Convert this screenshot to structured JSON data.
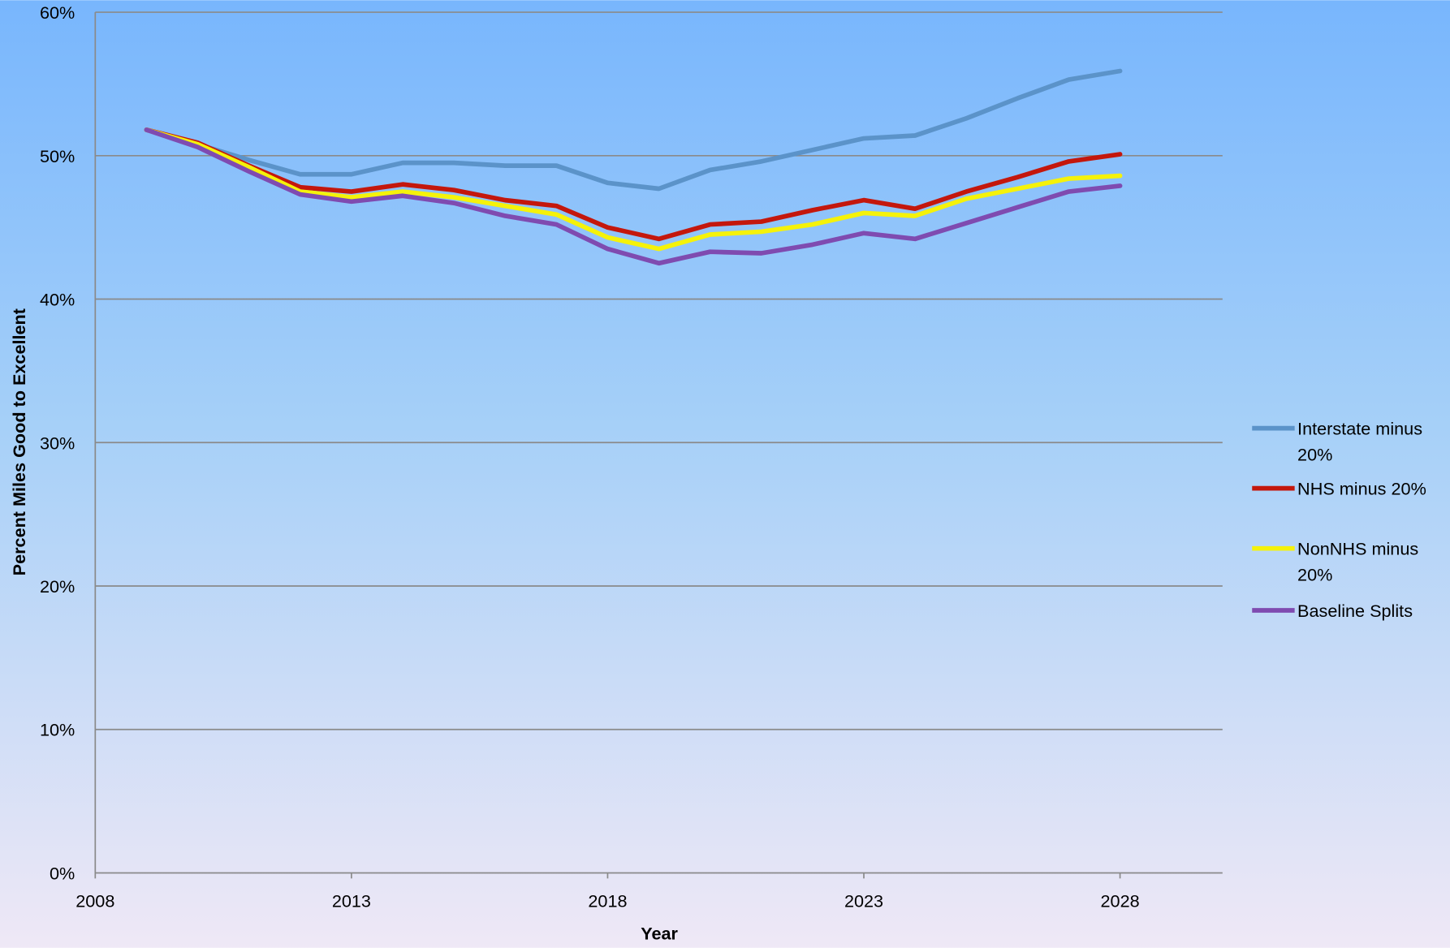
{
  "chart_data": {
    "type": "line",
    "x_label": "Year",
    "y_label": "Percent Miles Good to Excellent",
    "x": [
      2009,
      2010,
      2011,
      2012,
      2013,
      2014,
      2015,
      2016,
      2017,
      2018,
      2019,
      2020,
      2021,
      2022,
      2023,
      2024,
      2025,
      2026,
      2027,
      2028
    ],
    "series": [
      {
        "name": "Interstate minus 20%",
        "color": "#5b93c9",
        "values": [
          51.8,
          50.8,
          49.7,
          48.7,
          48.7,
          49.5,
          49.5,
          49.3,
          49.3,
          48.1,
          47.7,
          49.0,
          49.6,
          50.4,
          51.2,
          51.4,
          52.6,
          54.0,
          55.3,
          55.9
        ]
      },
      {
        "name": "NHS minus 20%",
        "color": "#c4170c",
        "values": [
          51.8,
          50.9,
          49.3,
          47.8,
          47.5,
          48.0,
          47.6,
          46.9,
          46.5,
          45.0,
          44.2,
          45.2,
          45.4,
          46.2,
          46.9,
          46.3,
          47.5,
          48.5,
          49.6,
          50.1
        ]
      },
      {
        "name": "NonNHS minus 20%",
        "color": "#f5f20a",
        "values": [
          51.8,
          50.8,
          49.2,
          47.5,
          47.1,
          47.5,
          47.1,
          46.5,
          45.9,
          44.3,
          43.5,
          44.5,
          44.7,
          45.2,
          46.0,
          45.8,
          47.0,
          47.7,
          48.4,
          48.6
        ]
      },
      {
        "name": "Baseline Splits",
        "color": "#7f4bb0",
        "values": [
          51.8,
          50.6,
          48.9,
          47.3,
          46.8,
          47.2,
          46.7,
          45.8,
          45.2,
          43.5,
          42.5,
          43.3,
          43.2,
          43.8,
          44.6,
          44.2,
          45.3,
          46.4,
          47.5,
          47.9
        ]
      }
    ],
    "xlim": [
      2008,
      2030
    ],
    "xticks": [
      2008,
      2013,
      2018,
      2023,
      2028
    ],
    "ylim": [
      0,
      60
    ],
    "yticks": [
      {
        "value": 0,
        "label": "0%"
      },
      {
        "value": 10,
        "label": "10%"
      },
      {
        "value": 20,
        "label": "20%"
      },
      {
        "value": 30,
        "label": "30%"
      },
      {
        "value": 40,
        "label": "40%"
      },
      {
        "value": 50,
        "label": "50%"
      },
      {
        "value": 60,
        "label": "60%"
      }
    ],
    "grid": true,
    "legend": "right"
  }
}
